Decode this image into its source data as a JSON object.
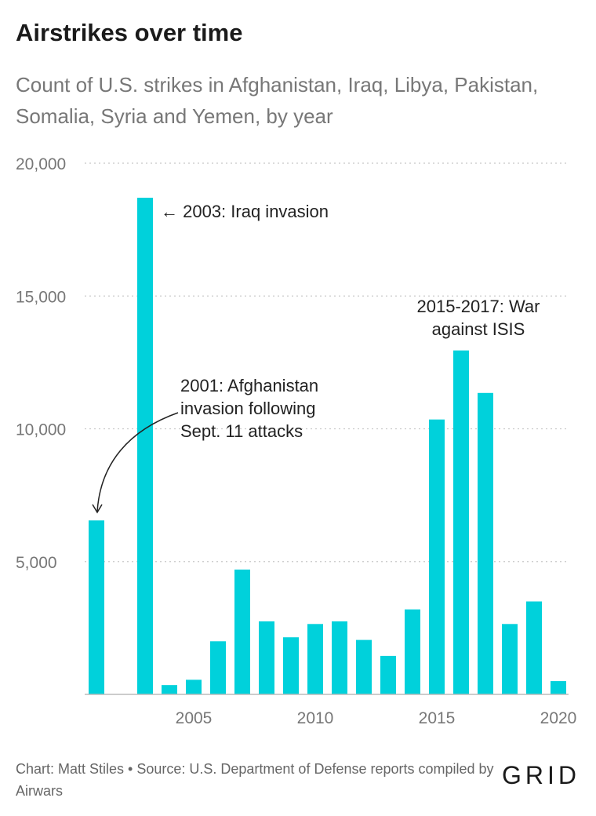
{
  "chart_data": {
    "type": "bar",
    "title": "Airstrikes over time",
    "subtitle": "Count of U.S. strikes in Afghanistan, Iraq, Libya, Pakistan, Somalia, Syria and Yemen, by year",
    "x": [
      2001,
      2002,
      2003,
      2004,
      2005,
      2006,
      2007,
      2008,
      2009,
      2010,
      2011,
      2012,
      2013,
      2014,
      2015,
      2016,
      2017,
      2018,
      2019,
      2020
    ],
    "values": [
      6550,
      0,
      18700,
      350,
      550,
      2000,
      4700,
      2750,
      2150,
      2650,
      2750,
      2050,
      1450,
      3200,
      10350,
      12950,
      11350,
      2650,
      3500,
      500
    ],
    "ylim": [
      0,
      20000
    ],
    "yticks": [
      5000,
      10000,
      15000,
      20000
    ],
    "ytick_labels": [
      "5,000",
      "10,000",
      "15,000",
      "20,000"
    ],
    "xticks": [
      2005,
      2010,
      2015,
      2020
    ],
    "xtick_labels": [
      "2005",
      "2010",
      "2015",
      "2020"
    ],
    "grid": true,
    "bar_color": "#00d1db",
    "annotations": [
      {
        "text_lines": [
          "← 2003: Iraq invasion"
        ],
        "year": 2003
      },
      {
        "text_lines": [
          "2001: Afghanistan",
          "invasion following",
          "Sept. 11 attacks"
        ],
        "year": 2001
      },
      {
        "text_lines": [
          "2015-2017: War",
          "against ISIS"
        ],
        "year": 2016
      }
    ]
  },
  "footer": {
    "credit": "Chart: Matt Stiles • Source: U.S. Department of Defense reports compiled by Airwars",
    "logo": "GRID"
  }
}
